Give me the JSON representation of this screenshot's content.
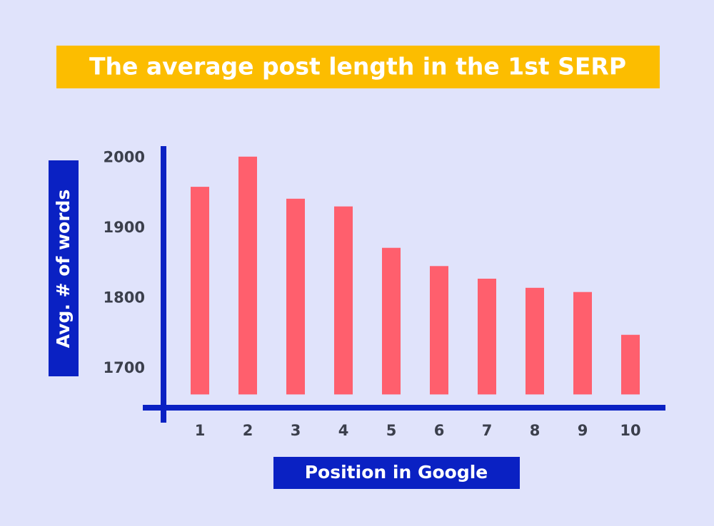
{
  "chart_data": {
    "type": "bar",
    "title": "The average post length in the 1st SERP",
    "x_label": "Position in Google",
    "y_label": "Avg. # of words",
    "categories": [
      "1",
      "2",
      "3",
      "4",
      "5",
      "6",
      "7",
      "8",
      "9",
      "10"
    ],
    "values": [
      1959,
      2002,
      1942,
      1931,
      1872,
      1846,
      1828,
      1815,
      1809,
      1748
    ],
    "color": "#ff5f6d",
    "ylim": [
      1663,
      2017
    ],
    "yticks": [
      1700,
      1800,
      1900,
      2000
    ],
    "grid": false
  }
}
